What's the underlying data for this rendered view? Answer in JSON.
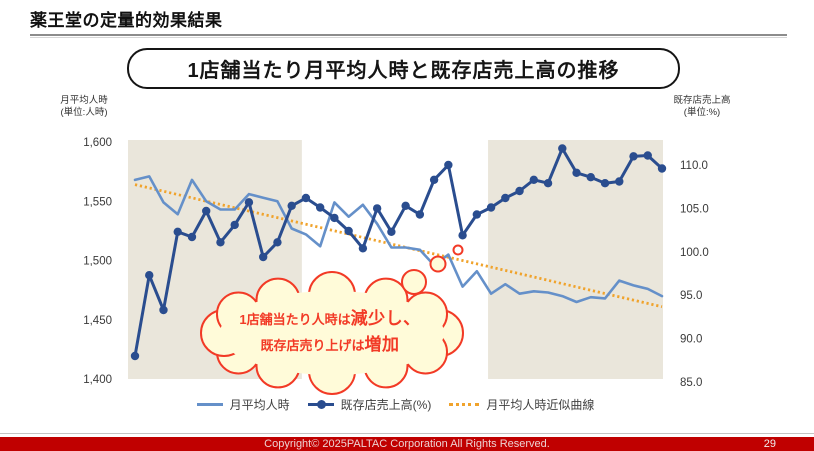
{
  "header": {
    "title": "薬王堂の定量的効果結果"
  },
  "chart_title": "1店舗当たり月平均人時と既存店売上高の推移",
  "axes": {
    "left": {
      "title_line1": "月平均人時",
      "title_line2": "(単位:人時)"
    },
    "right": {
      "title_line1": "既存店売上高",
      "title_line2": "(単位:%)"
    }
  },
  "legend": [
    {
      "label": "月平均人時",
      "type": "line",
      "color": "#6590C9"
    },
    {
      "label": "既存店売上高(%)",
      "type": "line-marker",
      "color": "#2A4D8F"
    },
    {
      "label": "月平均人時近似曲線",
      "type": "dotted",
      "color": "#F0A32C"
    }
  ],
  "callout": {
    "line1_normal": "1店舗当たり人時は",
    "line1_em": "減少し、",
    "line2_normal": "既存店売り上げは",
    "line2_em": "増加"
  },
  "footer": {
    "copyright": "Copyright© 2025PALTAC Corporation All Rights Reserved.",
    "page": "29"
  },
  "colors": {
    "monthly_hours_line": "#6590C9",
    "sales_line": "#2A4D8F",
    "trend_dotted": "#F0A32C",
    "highlight_band": "#EAE6DB",
    "callout_red": "#F23A26",
    "callout_fill": "#FFFBD9",
    "footer_red": "#C00000"
  },
  "chart_data": {
    "type": "line",
    "title": "1店舗当たり月平均人時と既存店売上高の推移",
    "x": "time (monthly points, no x tick labels shown)",
    "left_axis": {
      "label": "月平均人時(単位:人時)",
      "range": [
        1400,
        1600
      ],
      "ticks": [
        1600,
        1550,
        1500,
        1450,
        1400
      ],
      "tick_labels": [
        "1,600",
        "1,550",
        "1,500",
        "1,450",
        "1,400"
      ]
    },
    "right_axis": {
      "label": "既存店売上高(単位:%)",
      "range": [
        85,
        110
      ],
      "ticks": [
        110,
        105,
        100,
        95,
        90,
        85
      ],
      "tick_labels": [
        "110.0",
        "105.0",
        "100.0",
        "95.0",
        "90.0",
        "85.0"
      ]
    },
    "bands_fraction": [
      [
        0,
        0.325
      ],
      [
        0.673,
        1
      ]
    ],
    "grid": false,
    "legend_position": "bottom",
    "series": [
      {
        "name": "月平均人時",
        "axis": "left",
        "color": "#6590C9",
        "marker": false,
        "values": [
          1568,
          1571,
          1549,
          1539,
          1568,
          1550,
          1543,
          1543,
          1556,
          1553,
          1550,
          1527,
          1522,
          1512,
          1549,
          1537,
          1547,
          1531,
          1511,
          1511,
          1509,
          1496,
          1505,
          1478,
          1491,
          1472,
          1480,
          1472,
          1474,
          1473,
          1470,
          1465,
          1469,
          1468,
          1483,
          1479,
          1476,
          1470
        ]
      },
      {
        "name": "既存店売上高(%)",
        "axis": "right",
        "color": "#2A4D8F",
        "marker": true,
        "values": [
          88.0,
          97.3,
          93.3,
          102.3,
          101.7,
          104.7,
          101.1,
          103.1,
          105.7,
          99.4,
          101.1,
          105.3,
          106.2,
          105.1,
          103.9,
          102.4,
          100.4,
          105.0,
          102.3,
          105.3,
          104.3,
          108.3,
          110.0,
          101.9,
          104.3,
          105.1,
          106.2,
          107.0,
          108.3,
          107.9,
          111.9,
          109.1,
          108.6,
          107.9,
          108.1,
          111.0,
          111.1,
          109.6
        ]
      },
      {
        "name": "月平均人時近似曲線",
        "axis": "left",
        "color": "#F0A32C",
        "style": "dotted-trend",
        "trend_start": 1564,
        "trend_end": 1461
      }
    ]
  }
}
